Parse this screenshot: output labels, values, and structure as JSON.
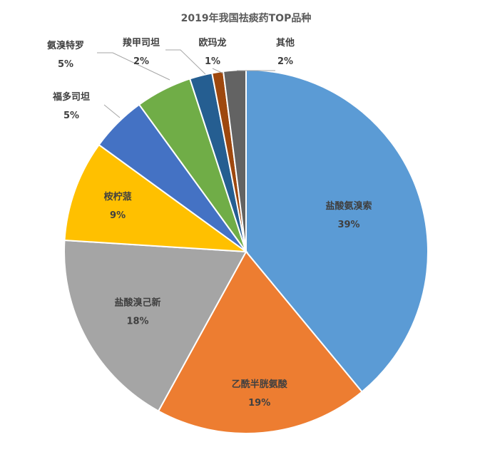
{
  "chart_data": {
    "type": "pie",
    "title": "2019年我国祛痰药TOP品种",
    "slices": [
      {
        "name": "盐酸氨溴索",
        "value": 39,
        "label": "39%",
        "color": "#5B9BD5"
      },
      {
        "name": "乙酰半胱氨酸",
        "value": 19,
        "label": "19%",
        "color": "#ED7D31"
      },
      {
        "name": "盐酸溴己新",
        "value": 18,
        "label": "18%",
        "color": "#A5A5A5"
      },
      {
        "name": "桉柠蒎",
        "value": 9,
        "label": "9%",
        "color": "#FFC000"
      },
      {
        "name": "福多司坦",
        "value": 5,
        "label": "5%",
        "color": "#4472C4"
      },
      {
        "name": "氨溴特罗",
        "value": 5,
        "label": "5%",
        "color": "#70AD47"
      },
      {
        "name": "羧甲司坦",
        "value": 2,
        "label": "2%",
        "color": "#255E91"
      },
      {
        "name": "欧玛龙",
        "value": 1,
        "label": "1%",
        "color": "#9E480E"
      },
      {
        "name": "其他",
        "value": 2,
        "label": "2%",
        "color": "#636363"
      }
    ]
  }
}
